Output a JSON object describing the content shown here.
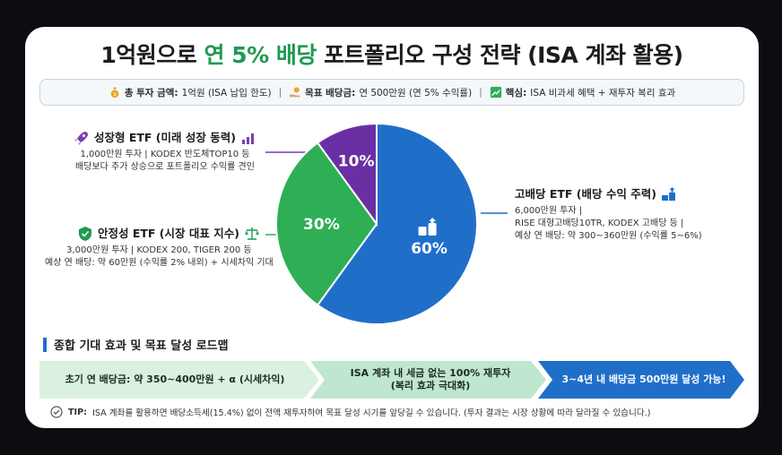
{
  "title": {
    "part1": "1억원으로 ",
    "highlight": "연 5% 배당",
    "part2": " 포트폴리오 구성 전략 (ISA 계좌 활용)"
  },
  "infobar": {
    "total_label": "총 투자 금액:",
    "total_value": "1억원 (ISA 납입 한도)",
    "target_label": "목표 배당금:",
    "target_value": "연 500만원 (연 5% 수익률)",
    "key_label": "핵심:",
    "key_value": "ISA 비과세 혜택 + 재투자 복리 효과",
    "separator": "|"
  },
  "chart_data": {
    "type": "pie",
    "slices": [
      {
        "name": "고배당 ETF (배당 수익 주력)",
        "value": 60,
        "label": "60%",
        "color": "#1f6fc9"
      },
      {
        "name": "안정성 ETF (시장 대표 지수)",
        "value": 30,
        "label": "30%",
        "color": "#2eaf55"
      },
      {
        "name": "성장형 ETF (미래 성장 동력)",
        "value": 10,
        "label": "10%",
        "color": "#6a2fa3"
      }
    ],
    "start_angle_deg": 0,
    "direction": "clockwise"
  },
  "callouts": {
    "growth": {
      "title": "성장형 ETF (미래 성장 동력)",
      "line1": "1,000만원 투자 | KODEX 반도체TOP10 등",
      "line2": "배당보다 주가 상승으로 포트폴리오 수익률 견인"
    },
    "stable": {
      "title": "안정성 ETF (시장 대표 지수)",
      "line1": "3,000만원 투자 | KODEX 200, TIGER 200 등",
      "line2": "예상 연 배당: 약 60만원 (수익률 2% 내외) + 시세차익 기대"
    },
    "dividend": {
      "title": "고배당 ETF (배당 수익 주력)",
      "line1": "6,000만원 투자 |",
      "line2": "RISE 대형고배당10TR, KODEX 고배당 등 |",
      "line3": "예상 연 배당: 약 300~360만원 (수익률 5~6%)"
    }
  },
  "roadmap": {
    "title": "종합 기대 효과 및 목표 달성 로드맵",
    "step1": "초기 연 배당금: 약 350~400만원 + α (시세차익)",
    "step2_line1": "ISA 계좌 내 세금 없는 100% 재투자",
    "step2_line2": "(복리 효과 극대화)",
    "step3": "3~4년 내 배당금 500만원 달성 가능!",
    "colors": {
      "step1": "#d9f1de",
      "step2": "#bfe6cf",
      "step3": "#1f6fc9"
    }
  },
  "tip": {
    "label": "TIP:",
    "text": "ISA 계좌를 활용하면 배당소득세(15.4%) 없이 전액 재투자하여 목표 달성 시기를 앞당길 수 있습니다. (투자 결과는 시장 상황에 따라 달라질 수 있습니다.)"
  }
}
